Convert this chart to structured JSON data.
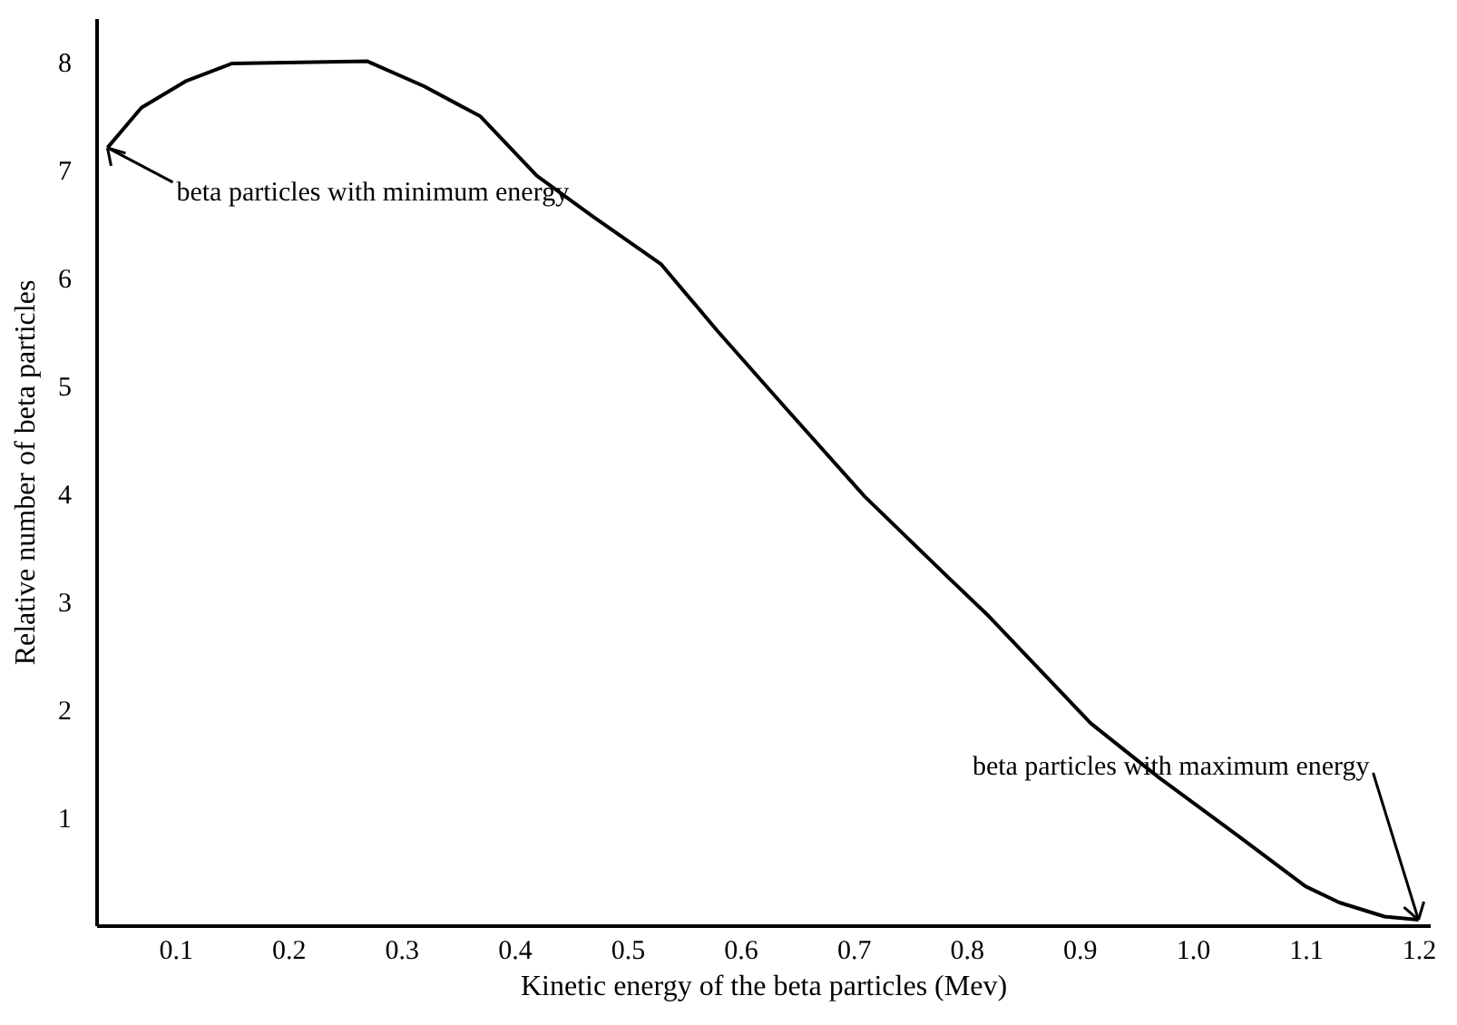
{
  "chart_data": {
    "type": "line",
    "xlabel": "Kinetic energy of the beta particles (Mev)",
    "ylabel": "Relative number of beta particles",
    "x": [
      0.04,
      0.07,
      0.11,
      0.15,
      0.27,
      0.32,
      0.37,
      0.42,
      0.47,
      0.53,
      0.58,
      0.64,
      0.71,
      0.78,
      0.82,
      0.91,
      0.97,
      1.04,
      1.1,
      1.13,
      1.17,
      1.2
    ],
    "series": [
      {
        "color": "#000000",
        "values": [
          7.2,
          7.57,
          7.82,
          7.98,
          8.0,
          7.77,
          7.49,
          6.94,
          6.56,
          6.12,
          5.5,
          4.79,
          3.97,
          3.26,
          2.86,
          1.87,
          1.37,
          0.83,
          0.36,
          0.21,
          0.08,
          0.05
        ]
      }
    ],
    "xlim": [
      0.03,
      1.21
    ],
    "ylim": [
      0,
      8.4
    ],
    "xticks": [
      0.1,
      0.2,
      0.3,
      0.4,
      0.5,
      0.6,
      0.7,
      0.8,
      0.9,
      {
        "value": 1.0,
        "label": "1.0"
      },
      1.1,
      1.2
    ],
    "yticks": [
      1,
      2,
      3,
      4,
      5,
      6,
      7,
      8
    ],
    "grid": false,
    "marker": "none",
    "line_style": "solid",
    "annotations": [
      {
        "text": "beta particles with minimum energy",
        "x": 0.04,
        "y": 7.2
      },
      {
        "text": "beta particles with maximum energy",
        "x": 1.2,
        "y": 0.05
      }
    ]
  }
}
